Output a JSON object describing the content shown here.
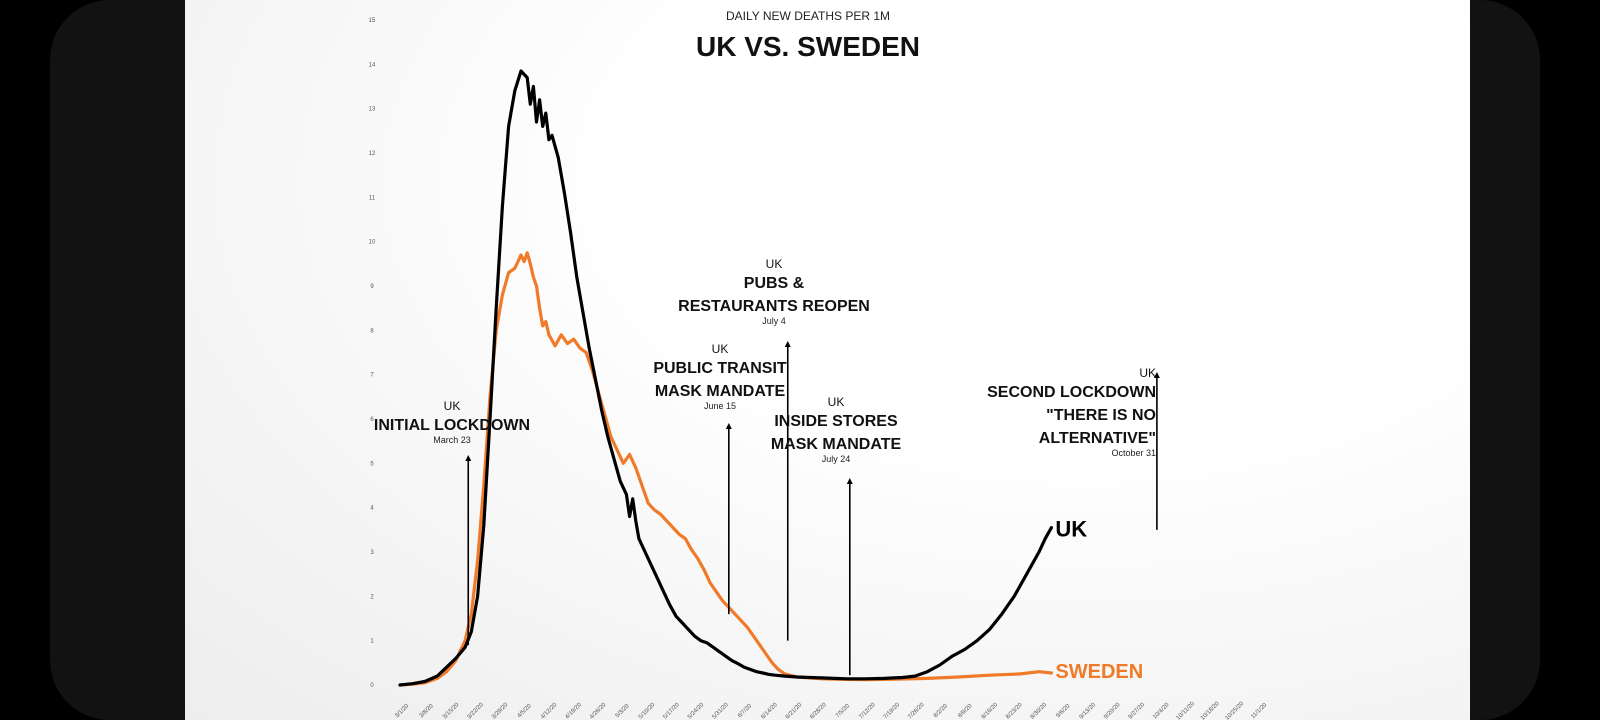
{
  "chart_data": {
    "type": "line",
    "subtitle": "DAILY NEW DEATHS PER 1M",
    "title": "UK VS. SWEDEN",
    "x_tick_labels": [
      "3/1/20",
      "3/8/20",
      "3/15/20",
      "3/22/20",
      "3/29/20",
      "4/5/20",
      "4/12/20",
      "4/19/20",
      "4/26/20",
      "5/3/20",
      "5/10/20",
      "5/17/20",
      "5/24/20",
      "5/31/20",
      "6/7/20",
      "6/14/20",
      "6/21/20",
      "6/28/20",
      "7/5/20",
      "7/12/20",
      "7/19/20",
      "7/26/20",
      "8/2/20",
      "8/9/20",
      "8/16/20",
      "8/23/20",
      "8/30/20",
      "9/6/20",
      "9/13/20",
      "9/20/20",
      "9/27/20",
      "10/4/20",
      "10/11/20",
      "10/18/20",
      "10/25/20",
      "11/1/20"
    ],
    "y_ticks": [
      0,
      1,
      2,
      3,
      4,
      5,
      6,
      7,
      8,
      9,
      10,
      11,
      12,
      13,
      14,
      15
    ],
    "ylim": [
      0,
      15
    ],
    "x_range_days": [
      0,
      245
    ],
    "series": [
      {
        "name": "UK",
        "color": "#000000",
        "points": [
          [
            0,
            0
          ],
          [
            4,
            0.03
          ],
          [
            8,
            0.08
          ],
          [
            12,
            0.2
          ],
          [
            15,
            0.4
          ],
          [
            18,
            0.6
          ],
          [
            21,
            0.85
          ],
          [
            23,
            1.2
          ],
          [
            25,
            2.0
          ],
          [
            27,
            3.6
          ],
          [
            29,
            6.0
          ],
          [
            31,
            8.5
          ],
          [
            33,
            10.8
          ],
          [
            35,
            12.6
          ],
          [
            37,
            13.4
          ],
          [
            39,
            13.85
          ],
          [
            41,
            13.7
          ],
          [
            42,
            13.1
          ],
          [
            43,
            13.5
          ],
          [
            44,
            12.7
          ],
          [
            45,
            13.2
          ],
          [
            46,
            12.6
          ],
          [
            47,
            12.9
          ],
          [
            48,
            12.3
          ],
          [
            49,
            12.4
          ],
          [
            51,
            11.9
          ],
          [
            53,
            11.1
          ],
          [
            55,
            10.2
          ],
          [
            57,
            9.2
          ],
          [
            59,
            8.4
          ],
          [
            61,
            7.6
          ],
          [
            63,
            6.9
          ],
          [
            65,
            6.2
          ],
          [
            67,
            5.6
          ],
          [
            69,
            5.1
          ],
          [
            71,
            4.6
          ],
          [
            73,
            4.3
          ],
          [
            74,
            3.8
          ],
          [
            75,
            4.2
          ],
          [
            76,
            3.7
          ],
          [
            77,
            3.3
          ],
          [
            79,
            3.0
          ],
          [
            81,
            2.7
          ],
          [
            83,
            2.4
          ],
          [
            85,
            2.1
          ],
          [
            87,
            1.8
          ],
          [
            89,
            1.55
          ],
          [
            91,
            1.4
          ],
          [
            93,
            1.25
          ],
          [
            95,
            1.1
          ],
          [
            97,
            1.0
          ],
          [
            99,
            0.95
          ],
          [
            101,
            0.85
          ],
          [
            103,
            0.75
          ],
          [
            105,
            0.65
          ],
          [
            107,
            0.55
          ],
          [
            109,
            0.48
          ],
          [
            111,
            0.4
          ],
          [
            113,
            0.35
          ],
          [
            115,
            0.3
          ],
          [
            117,
            0.27
          ],
          [
            119,
            0.24
          ],
          [
            121,
            0.22
          ],
          [
            124,
            0.2
          ],
          [
            128,
            0.18
          ],
          [
            132,
            0.17
          ],
          [
            136,
            0.16
          ],
          [
            140,
            0.15
          ],
          [
            144,
            0.14
          ],
          [
            150,
            0.14
          ],
          [
            156,
            0.15
          ],
          [
            162,
            0.17
          ],
          [
            166,
            0.2
          ],
          [
            170,
            0.3
          ],
          [
            174,
            0.45
          ],
          [
            178,
            0.65
          ],
          [
            182,
            0.8
          ],
          [
            186,
            1.0
          ],
          [
            190,
            1.25
          ],
          [
            194,
            1.6
          ],
          [
            198,
            2.0
          ],
          [
            202,
            2.5
          ],
          [
            206,
            3.0
          ],
          [
            208,
            3.3
          ],
          [
            210,
            3.55
          ]
        ]
      },
      {
        "name": "SWEDEN",
        "color": "#f07a28",
        "points": [
          [
            0,
            0
          ],
          [
            4,
            0.02
          ],
          [
            8,
            0.05
          ],
          [
            12,
            0.15
          ],
          [
            15,
            0.3
          ],
          [
            18,
            0.55
          ],
          [
            21,
            1.0
          ],
          [
            23,
            1.6
          ],
          [
            25,
            2.8
          ],
          [
            27,
            4.5
          ],
          [
            29,
            6.5
          ],
          [
            31,
            8.0
          ],
          [
            33,
            8.8
          ],
          [
            35,
            9.3
          ],
          [
            37,
            9.4
          ],
          [
            39,
            9.7
          ],
          [
            40,
            9.55
          ],
          [
            41,
            9.75
          ],
          [
            42,
            9.5
          ],
          [
            43,
            9.2
          ],
          [
            44,
            9.0
          ],
          [
            45,
            8.5
          ],
          [
            46,
            8.1
          ],
          [
            47,
            8.2
          ],
          [
            48,
            7.9
          ],
          [
            50,
            7.65
          ],
          [
            52,
            7.9
          ],
          [
            54,
            7.7
          ],
          [
            56,
            7.8
          ],
          [
            58,
            7.6
          ],
          [
            60,
            7.5
          ],
          [
            62,
            7.1
          ],
          [
            64,
            6.6
          ],
          [
            66,
            6.1
          ],
          [
            68,
            5.6
          ],
          [
            70,
            5.3
          ],
          [
            72,
            5.0
          ],
          [
            74,
            5.2
          ],
          [
            76,
            4.9
          ],
          [
            78,
            4.5
          ],
          [
            80,
            4.1
          ],
          [
            82,
            3.95
          ],
          [
            84,
            3.85
          ],
          [
            86,
            3.7
          ],
          [
            88,
            3.55
          ],
          [
            90,
            3.4
          ],
          [
            92,
            3.3
          ],
          [
            94,
            3.05
          ],
          [
            96,
            2.85
          ],
          [
            98,
            2.6
          ],
          [
            100,
            2.3
          ],
          [
            102,
            2.1
          ],
          [
            104,
            1.9
          ],
          [
            106,
            1.75
          ],
          [
            108,
            1.6
          ],
          [
            110,
            1.45
          ],
          [
            112,
            1.3
          ],
          [
            114,
            1.1
          ],
          [
            116,
            0.9
          ],
          [
            118,
            0.7
          ],
          [
            120,
            0.5
          ],
          [
            122,
            0.35
          ],
          [
            124,
            0.25
          ],
          [
            128,
            0.18
          ],
          [
            132,
            0.16
          ],
          [
            136,
            0.14
          ],
          [
            140,
            0.13
          ],
          [
            150,
            0.12
          ],
          [
            160,
            0.13
          ],
          [
            170,
            0.15
          ],
          [
            180,
            0.18
          ],
          [
            190,
            0.22
          ],
          [
            200,
            0.25
          ],
          [
            206,
            0.3
          ],
          [
            210,
            0.27
          ]
        ]
      }
    ],
    "series_labels": [
      "UK",
      "SWEDEN"
    ],
    "annotations": [
      {
        "day": 22,
        "y_value": 0.9,
        "lines": [
          "UK",
          "INITIAL LOCKDOWN"
        ],
        "date": "March 23"
      },
      {
        "day": 106,
        "y_value": 1.6,
        "lines": [
          "UK",
          "PUBLIC TRANSIT",
          "MASK MANDATE"
        ],
        "date": "June 15"
      },
      {
        "day": 125,
        "y_value": 1.0,
        "lines": [
          "UK",
          "PUBS &",
          "RESTAURANTS REOPEN"
        ],
        "date": "July 4"
      },
      {
        "day": 145,
        "y_value": 0.22,
        "lines": [
          "UK",
          "INSIDE STORES",
          "MASK MANDATE"
        ],
        "date": "July 24"
      },
      {
        "day": 244,
        "y_value": 3.5,
        "lines": [
          "UK",
          "SECOND LOCKDOWN",
          "\"THERE IS NO",
          "ALTERNATIVE\""
        ],
        "date": "October 31"
      }
    ]
  }
}
